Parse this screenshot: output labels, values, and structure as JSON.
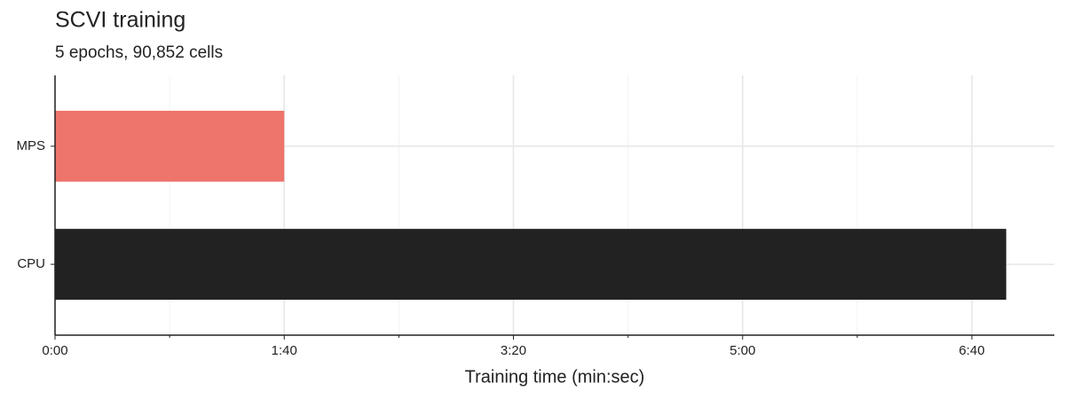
{
  "chart_data": {
    "type": "bar",
    "orientation": "horizontal",
    "title": "SCVI training",
    "subtitle": "5 epochs, 90,852 cells",
    "x_label": "Training time (min:sec)",
    "categories": [
      "MPS",
      "CPU"
    ],
    "values": [
      100,
      415
    ],
    "colors": [
      "#ed756b",
      "#222222"
    ],
    "xlim": [
      0,
      436
    ],
    "xticks": [
      {
        "value": 0,
        "label": "0:00"
      },
      {
        "value": 100,
        "label": "1:40"
      },
      {
        "value": 200,
        "label": "3:20"
      },
      {
        "value": 300,
        "label": "5:00"
      },
      {
        "value": 400,
        "label": "6:40"
      }
    ],
    "xminor": [
      50,
      150,
      250,
      350
    ],
    "grid": true
  }
}
